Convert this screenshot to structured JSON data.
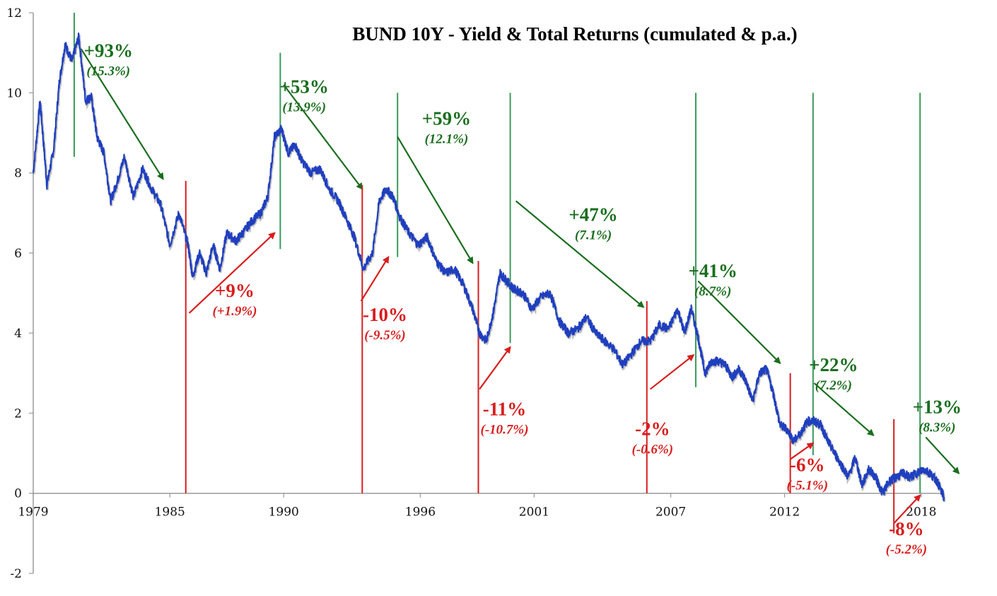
{
  "chart_data": {
    "type": "line",
    "title": "BUND 10Y - Yield & Total Returns (cumulated & p.a.)",
    "xlabel": "",
    "ylabel": "",
    "xlim": [
      1979.0,
      2019.0
    ],
    "ylim": [
      -2,
      12
    ],
    "x_ticks": [
      {
        "value": 1979.0,
        "label": "1979"
      },
      {
        "value": 1985.0,
        "label": "1985"
      },
      {
        "value": 1990.0,
        "label": "1990"
      },
      {
        "value": 1996.0,
        "label": "1996"
      },
      {
        "value": 2001.0,
        "label": "2001"
      },
      {
        "value": 2007.0,
        "label": "2007"
      },
      {
        "value": 2012.0,
        "label": "2012"
      },
      {
        "value": 2018.0,
        "label": "2018"
      }
    ],
    "y_ticks": [
      -2,
      0,
      2,
      4,
      6,
      8,
      10,
      12
    ],
    "grid": false,
    "series": [
      {
        "color": "#1f3fbf",
        "x": [
          1979.0,
          1979.3,
          1979.6,
          1979.9,
          1980.15,
          1980.4,
          1980.7,
          1981.0,
          1981.3,
          1981.55,
          1981.8,
          1982.1,
          1982.4,
          1982.7,
          1983.0,
          1983.4,
          1983.8,
          1984.2,
          1984.6,
          1985.0,
          1985.4,
          1985.8,
          1986.0,
          1986.3,
          1986.6,
          1986.9,
          1987.2,
          1987.5,
          1987.9,
          1988.2,
          1988.6,
          1989.0,
          1989.3,
          1989.6,
          1989.9,
          1990.2,
          1990.5,
          1990.8,
          1991.2,
          1991.6,
          1992.0,
          1992.4,
          1992.8,
          1993.1,
          1993.5,
          1993.9,
          1994.2,
          1994.5,
          1994.8,
          1995.1,
          1995.5,
          1995.9,
          1996.3,
          1996.7,
          1997.1,
          1997.5,
          1997.9,
          1998.3,
          1998.6,
          1998.9,
          1999.2,
          1999.5,
          1999.8,
          2000.1,
          2000.5,
          2000.9,
          2001.3,
          2001.7,
          2002.1,
          2002.5,
          2002.9,
          2003.3,
          2003.7,
          2004.1,
          2004.5,
          2004.9,
          2005.3,
          2005.7,
          2006.1,
          2006.5,
          2006.9,
          2007.3,
          2007.6,
          2007.9,
          2008.2,
          2008.5,
          2008.8,
          2009.1,
          2009.4,
          2009.7,
          2010.0,
          2010.3,
          2010.6,
          2010.9,
          2011.2,
          2011.5,
          2011.8,
          2012.1,
          2012.4,
          2012.7,
          2013.0,
          2013.3,
          2013.6,
          2013.9,
          2014.2,
          2014.5,
          2014.8,
          2015.1,
          2015.4,
          2015.7,
          2016.0,
          2016.3,
          2016.6,
          2016.9,
          2017.2,
          2017.5,
          2017.8,
          2018.1,
          2018.4,
          2018.7,
          2019.0
        ],
        "values": [
          8.0,
          9.8,
          7.7,
          8.6,
          10.3,
          11.2,
          10.8,
          11.4,
          9.8,
          9.9,
          8.9,
          8.5,
          7.3,
          7.8,
          8.4,
          7.4,
          8.1,
          7.6,
          7.2,
          6.2,
          7.0,
          6.2,
          5.4,
          6.0,
          5.5,
          6.2,
          5.6,
          6.5,
          6.3,
          6.5,
          6.8,
          7.0,
          7.4,
          8.9,
          9.1,
          8.5,
          8.7,
          8.3,
          8.0,
          8.1,
          7.6,
          7.3,
          6.8,
          6.4,
          5.6,
          6.0,
          7.3,
          7.6,
          7.4,
          6.9,
          6.5,
          6.2,
          6.4,
          5.8,
          5.5,
          5.6,
          5.2,
          4.6,
          4.0,
          3.8,
          4.5,
          5.5,
          5.3,
          5.1,
          5.0,
          4.6,
          4.9,
          5.0,
          4.3,
          4.0,
          4.1,
          4.4,
          4.0,
          3.8,
          3.6,
          3.2,
          3.5,
          3.8,
          3.8,
          4.2,
          4.1,
          4.6,
          4.0,
          4.6,
          3.9,
          3.0,
          3.3,
          3.3,
          3.2,
          2.9,
          3.1,
          2.8,
          2.3,
          3.0,
          3.1,
          2.5,
          1.7,
          1.6,
          1.3,
          1.5,
          1.8,
          1.8,
          1.7,
          1.3,
          1.0,
          0.7,
          0.4,
          0.9,
          0.2,
          0.6,
          0.4,
          0.0,
          0.3,
          0.4,
          0.5,
          0.4,
          0.5,
          0.6,
          0.5,
          0.3,
          -0.1
        ]
      }
    ],
    "annotations": [
      {
        "main": "+93%",
        "sub": "(15.3%)",
        "color": "#1a6e1e",
        "x": 1982.3,
        "y": 10.9
      },
      {
        "main": "+53%",
        "sub": "(13.9%)",
        "color": "#1a6e1e",
        "x": 1990.9,
        "y": 10.0
      },
      {
        "main": "+59%",
        "sub": "(12.1%)",
        "color": "#1a6e1e",
        "x": 1997.15,
        "y": 9.2
      },
      {
        "main": "+47%",
        "sub": "(7.1%)",
        "color": "#1a6e1e",
        "x": 2003.6,
        "y": 6.8
      },
      {
        "main": "+41%",
        "sub": "(8.7%)",
        "color": "#1a6e1e",
        "x": 2008.85,
        "y": 5.4
      },
      {
        "main": "+22%",
        "sub": "(7.2%)",
        "color": "#1a6e1e",
        "x": 2014.15,
        "y": 3.05
      },
      {
        "main": "+13%",
        "sub": "(8.3%)",
        "color": "#1a6e1e",
        "x": 2018.7,
        "y": 2.0
      },
      {
        "main": "+9%",
        "sub": "(+1.9%)",
        "color": "#d81e1e",
        "x": 1987.85,
        "y": 4.9
      },
      {
        "main": "-10%",
        "sub": "(-9.5%)",
        "color": "#d81e1e",
        "x": 1994.45,
        "y": 4.3
      },
      {
        "main": "-11%",
        "sub": "(-10.7%)",
        "color": "#d81e1e",
        "x": 1999.7,
        "y": 1.95
      },
      {
        "main": "-2%",
        "sub": "(-0.6%)",
        "color": "#d81e1e",
        "x": 2006.2,
        "y": 1.45
      },
      {
        "main": "-6%",
        "sub": "(-5.1%)",
        "color": "#d81e1e",
        "x": 2013.0,
        "y": 0.55
      },
      {
        "main": "-8%",
        "sub": "(-5.2%)",
        "color": "#d81e1e",
        "x": 2017.35,
        "y": -1.05
      }
    ],
    "green_periods": [
      {
        "peak_x": 1980.8,
        "line_y": [
          8.4,
          12.0
        ],
        "arrow_from": [
          1981.1,
          11.1
        ],
        "arrow_to": [
          1984.7,
          7.85
        ]
      },
      {
        "peak_x": 1989.85,
        "line_y": [
          6.1,
          11.0
        ],
        "arrow_from": [
          1990.0,
          10.2
        ],
        "arrow_to": [
          1993.45,
          7.6
        ]
      },
      {
        "peak_x": 1995.0,
        "line_y": [
          5.9,
          10.0
        ],
        "arrow_from": [
          1995.0,
          8.9
        ],
        "arrow_to": [
          1998.3,
          5.75
        ]
      },
      {
        "peak_x": 1999.95,
        "line_y": [
          3.75,
          10.0
        ],
        "arrow_from": [
          2000.2,
          7.3
        ],
        "arrow_to": [
          2005.8,
          4.65
        ]
      },
      {
        "peak_x": 2008.1,
        "line_y": [
          2.65,
          10.0
        ],
        "arrow_from": [
          2008.2,
          5.3
        ],
        "arrow_to": [
          2011.8,
          3.25
        ]
      },
      {
        "peak_x": 2013.25,
        "line_y": [
          0.95,
          10.0
        ],
        "arrow_from": [
          2013.3,
          2.75
        ],
        "arrow_to": [
          2015.9,
          1.45
        ]
      },
      {
        "peak_x": 2017.95,
        "line_y": [
          0.0,
          10.0
        ],
        "arrow_from": [
          2018.2,
          1.4
        ],
        "arrow_to": [
          2019.65,
          0.5
        ]
      }
    ],
    "red_periods": [
      {
        "trough_x": 1985.7,
        "line_y": [
          0.0,
          7.8
        ],
        "arrow_from": [
          1985.85,
          4.5
        ],
        "arrow_to": [
          1989.6,
          6.5
        ]
      },
      {
        "trough_x": 1993.45,
        "line_y": [
          0.0,
          7.7
        ],
        "arrow_from": [
          1993.4,
          4.8
        ],
        "arrow_to": [
          1994.6,
          5.9
        ]
      },
      {
        "trough_x": 1998.55,
        "line_y": [
          0.0,
          5.8
        ],
        "arrow_from": [
          1998.6,
          2.6
        ],
        "arrow_to": [
          1999.95,
          3.65
        ]
      },
      {
        "trough_x": 2005.95,
        "line_y": [
          0.0,
          4.8
        ],
        "arrow_from": [
          2006.1,
          2.6
        ],
        "arrow_to": [
          2008.0,
          3.45
        ]
      },
      {
        "trough_x": 2012.25,
        "line_y": [
          0.0,
          3.0
        ],
        "arrow_from": [
          2012.25,
          0.85
        ],
        "arrow_to": [
          2013.25,
          1.25
        ]
      },
      {
        "trough_x": 2016.8,
        "line_y": [
          -1.0,
          1.85
        ],
        "arrow_from": [
          2016.8,
          -0.75
        ],
        "arrow_to": [
          2017.95,
          -0.05
        ]
      }
    ]
  }
}
